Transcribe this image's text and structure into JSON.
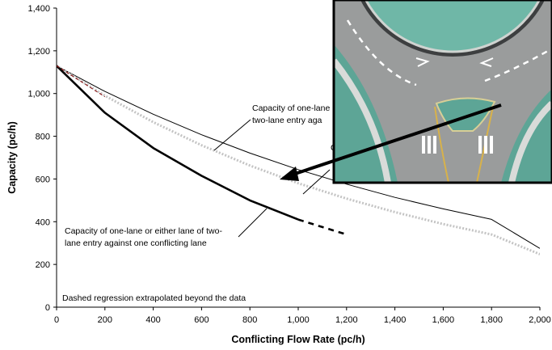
{
  "chart_data": {
    "type": "line",
    "xlabel": "Conflicting Flow Rate (pc/h)",
    "ylabel": "Capacity (pc/h)",
    "xlim": [
      0,
      2000
    ],
    "ylim": [
      0,
      1400
    ],
    "x_ticks": [
      0,
      200,
      400,
      600,
      800,
      1000,
      1200,
      1400,
      1600,
      1800,
      2000
    ],
    "y_ticks": [
      0,
      200,
      400,
      600,
      800,
      1000,
      1200,
      1400
    ],
    "x_tick_labels": [
      "0",
      "200",
      "400",
      "600",
      "800",
      "1,000",
      "1,200",
      "1,400",
      "1,600",
      "1,800",
      "2,000"
    ],
    "y_tick_labels": [
      "0",
      "200",
      "400",
      "600",
      "800",
      "1,000",
      "1,200",
      "1,400"
    ],
    "grid": false,
    "series": [
      {
        "style": "thin solid black",
        "x": [
          0,
          200,
          400,
          600,
          800,
          1000,
          1200,
          1400,
          1600,
          1800,
          2000
        ],
        "y": [
          1130,
          1010,
          903,
          807,
          721,
          644,
          576,
          514,
          460,
          411,
          275
        ]
      },
      {
        "style": "light grey dotted",
        "x": [
          0,
          200,
          400,
          600,
          800,
          1000,
          1200,
          1400,
          1600,
          1800,
          2000
        ],
        "y": [
          1130,
          990,
          866,
          758,
          663,
          580,
          508,
          445,
          389,
          340,
          248
        ]
      },
      {
        "style": "thick solid black",
        "x": [
          0,
          200,
          400,
          600,
          800,
          1000
        ],
        "y": [
          1130,
          910,
          745,
          615,
          500,
          410
        ]
      },
      {
        "style": "thick dashed black (extrapolated)",
        "x": [
          1000,
          1100,
          1200
        ],
        "y": [
          410,
          375,
          340
        ]
      }
    ],
    "annotations": {
      "top": "Capacity of one-lane",
      "top2": "two-lane entry aga",
      "mid": "C",
      "bottom1": "Capacity of one-lane or either lane of two-",
      "bottom2": "lane entry against one conflicting lane",
      "note": "Dashed regression extrapolated beyond the data"
    }
  }
}
